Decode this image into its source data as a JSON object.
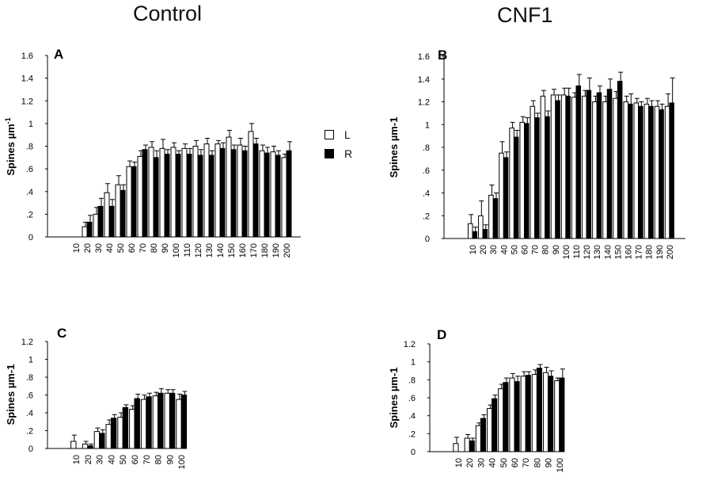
{
  "column_titles": {
    "left": "Control",
    "right": "CNF1"
  },
  "legend": [
    {
      "label": "L",
      "fill": "#ffffff"
    },
    {
      "label": "R",
      "fill": "#000000"
    }
  ],
  "colors": {
    "bar_L": "#ffffff",
    "bar_R": "#000000",
    "stroke": "#000000"
  },
  "chart_data": [
    {
      "panel": "A",
      "group": "Control",
      "type": "bar",
      "ylabel": "Spines µm",
      "ylabel_sup": "-1",
      "ylim": [
        0,
        1.6
      ],
      "yticks": [
        "0",
        ".2",
        ".4",
        ".6",
        ".8",
        "1",
        "1.2",
        "1.4",
        "1.6"
      ],
      "categories": [
        "10",
        "20",
        "30",
        "40",
        "50",
        "60",
        "70",
        "80",
        "90",
        "100",
        "110",
        "120",
        "130",
        "140",
        "150",
        "160",
        "170",
        "180",
        "190",
        "200"
      ],
      "series": [
        {
          "name": "L",
          "values": [
            0,
            0.09,
            0.2,
            0.39,
            0.46,
            0.62,
            0.71,
            0.79,
            0.78,
            0.79,
            0.78,
            0.8,
            0.82,
            0.82,
            0.88,
            0.81,
            0.93,
            0.76,
            0.75,
            0.7
          ],
          "errors": [
            0,
            0.04,
            0.06,
            0.08,
            0.08,
            0.05,
            0.05,
            0.05,
            0.08,
            0.04,
            0.04,
            0.05,
            0.05,
            0.03,
            0.06,
            0.06,
            0.07,
            0.05,
            0.05,
            0.03
          ]
        },
        {
          "name": "R",
          "values": [
            0,
            0.13,
            0.27,
            0.27,
            0.41,
            0.62,
            0.77,
            0.7,
            0.73,
            0.73,
            0.73,
            0.72,
            0.72,
            0.78,
            0.77,
            0.76,
            0.82,
            0.74,
            0.72,
            0.76
          ],
          "errors": [
            0,
            0.06,
            0.07,
            0.06,
            0.05,
            0.04,
            0.04,
            0.06,
            0.04,
            0.03,
            0.05,
            0.05,
            0.04,
            0.05,
            0.04,
            0.04,
            0.05,
            0.05,
            0.04,
            0.08
          ]
        }
      ]
    },
    {
      "panel": "B",
      "group": "CNF1",
      "type": "bar",
      "ylabel": "Spines µm-1",
      "ylabel_sup": "",
      "ylim": [
        0,
        1.6
      ],
      "yticks": [
        "0",
        ".2",
        ".4",
        ".6",
        ".8",
        "1",
        "1.2",
        "1.4",
        "1.6"
      ],
      "categories": [
        "10",
        "20",
        "30",
        "40",
        "50",
        "60",
        "70",
        "80",
        "90",
        "100",
        "110",
        "120",
        "130",
        "140",
        "150",
        "160",
        "170",
        "180",
        "190",
        "200"
      ],
      "series": [
        {
          "name": "L",
          "values": [
            0.13,
            0.2,
            0.38,
            0.75,
            0.97,
            1.02,
            1.16,
            1.25,
            1.26,
            1.26,
            1.24,
            1.25,
            1.2,
            1.2,
            1.23,
            1.2,
            1.19,
            1.18,
            1.16,
            1.16
          ],
          "errors": [
            0.08,
            0.13,
            0.09,
            0.1,
            0.05,
            0.05,
            0.05,
            0.05,
            0.05,
            0.06,
            0.04,
            0.05,
            0.05,
            0.05,
            0.06,
            0.05,
            0.04,
            0.05,
            0.05,
            0.11
          ]
        },
        {
          "name": "R",
          "values": [
            0.06,
            0.08,
            0.35,
            0.71,
            0.89,
            1.01,
            1.06,
            1.07,
            1.21,
            1.25,
            1.34,
            1.3,
            1.28,
            1.31,
            1.38,
            1.18,
            1.16,
            1.16,
            1.13,
            1.19
          ],
          "errors": [
            0.04,
            0.04,
            0.05,
            0.05,
            0.06,
            0.05,
            0.04,
            0.05,
            0.05,
            0.07,
            0.1,
            0.11,
            0.06,
            0.09,
            0.08,
            0.09,
            0.04,
            0.05,
            0.05,
            0.22
          ]
        }
      ]
    },
    {
      "panel": "C",
      "group": "Control",
      "type": "bar",
      "ylabel": "Spines µm-1",
      "ylabel_sup": "",
      "ylim": [
        0,
        1.2
      ],
      "yticks": [
        "0",
        ".2",
        ".4",
        ".6",
        ".8",
        "1",
        "1.2"
      ],
      "categories": [
        "10",
        "20",
        "30",
        "40",
        "50",
        "60",
        "70",
        "80",
        "90",
        "100"
      ],
      "series": [
        {
          "name": "L",
          "values": [
            0.08,
            0.05,
            0.19,
            0.27,
            0.35,
            0.44,
            0.55,
            0.59,
            0.62,
            0.55
          ],
          "errors": [
            0.07,
            0.03,
            0.04,
            0.05,
            0.05,
            0.04,
            0.05,
            0.04,
            0.04,
            0.06
          ]
        },
        {
          "name": "R",
          "values": [
            0.0,
            0.03,
            0.17,
            0.34,
            0.46,
            0.56,
            0.58,
            0.62,
            0.62,
            0.6
          ],
          "errors": [
            0.0,
            0.02,
            0.04,
            0.04,
            0.03,
            0.05,
            0.04,
            0.05,
            0.04,
            0.04
          ]
        }
      ]
    },
    {
      "panel": "D",
      "group": "CNF1",
      "type": "bar",
      "ylabel": "Spines µm-1",
      "ylabel_sup": "",
      "ylim": [
        0,
        1.2
      ],
      "yticks": [
        "0",
        ".2",
        ".4",
        ".6",
        ".8",
        "1",
        "1.2"
      ],
      "categories": [
        "10",
        "20",
        "30",
        "40",
        "50",
        "60",
        "70",
        "80",
        "90",
        "100"
      ],
      "series": [
        {
          "name": "L",
          "values": [
            0.09,
            0.15,
            0.29,
            0.48,
            0.7,
            0.82,
            0.84,
            0.86,
            0.88,
            0.79
          ],
          "errors": [
            0.07,
            0.04,
            0.03,
            0.04,
            0.05,
            0.05,
            0.05,
            0.05,
            0.06,
            0.03
          ]
        },
        {
          "name": "R",
          "values": [
            0.0,
            0.12,
            0.37,
            0.59,
            0.77,
            0.78,
            0.85,
            0.93,
            0.84,
            0.82
          ],
          "errors": [
            0.0,
            0.03,
            0.04,
            0.04,
            0.05,
            0.06,
            0.04,
            0.04,
            0.06,
            0.1
          ]
        }
      ]
    }
  ]
}
